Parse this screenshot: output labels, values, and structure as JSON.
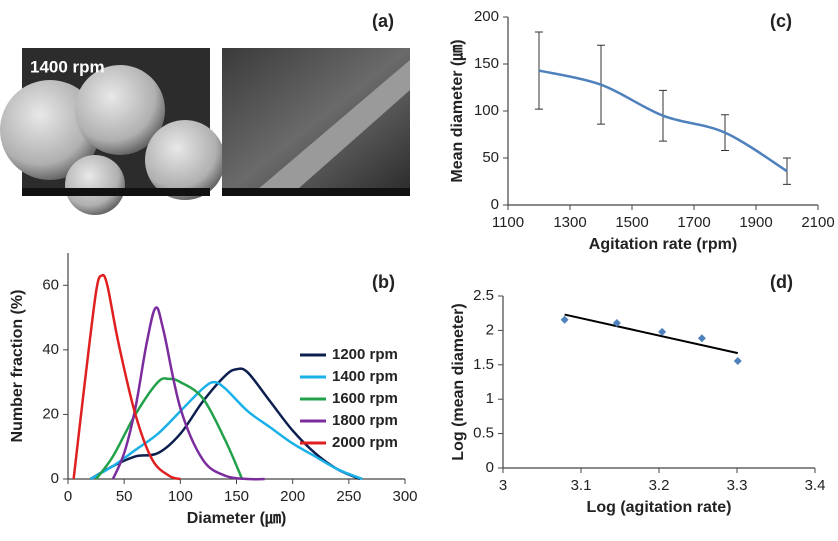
{
  "panel_a": {
    "label": "(a)",
    "caption": "1400 rpm"
  },
  "chart_data": [
    {
      "type": "line",
      "label": "(b)",
      "xlabel": "Diameter (㎛)",
      "ylabel": "Number fraction (%)",
      "xlim": [
        0,
        300
      ],
      "xticks": [
        0,
        50,
        100,
        150,
        200,
        250,
        300
      ],
      "ylim": [
        0,
        70
      ],
      "yticks": [
        0,
        20,
        40,
        60
      ],
      "legend": "right",
      "series": [
        {
          "name": "1200 rpm",
          "color": "#0d1f4f",
          "x": [
            20,
            40,
            60,
            80,
            100,
            120,
            140,
            150,
            160,
            180,
            200,
            220,
            240,
            260
          ],
          "values": [
            0,
            4,
            7,
            8,
            14,
            24,
            32,
            34,
            33,
            24,
            15,
            8,
            3,
            0
          ]
        },
        {
          "name": "1400 rpm",
          "color": "#1ab0e8",
          "x": [
            20,
            40,
            60,
            80,
            100,
            120,
            130,
            140,
            160,
            180,
            200,
            220,
            240,
            262
          ],
          "values": [
            0,
            4,
            9,
            14,
            21,
            28,
            30,
            28,
            21,
            16,
            11,
            7,
            3,
            0
          ]
        },
        {
          "name": "1600 rpm",
          "color": "#22a14b",
          "x": [
            25,
            40,
            60,
            80,
            90,
            100,
            120,
            140,
            155
          ],
          "values": [
            0,
            7,
            20,
            30,
            31,
            30,
            25,
            12,
            0
          ]
        },
        {
          "name": "1800 rpm",
          "color": "#7b2d9e",
          "x": [
            40,
            50,
            60,
            70,
            78,
            85,
            100,
            120,
            140,
            160,
            175
          ],
          "values": [
            0,
            8,
            22,
            42,
            53,
            46,
            22,
            6,
            1,
            0,
            0
          ]
        },
        {
          "name": "2000 rpm",
          "color": "#e02020",
          "x": [
            5,
            15,
            25,
            30,
            35,
            45,
            60,
            75,
            90,
            100
          ],
          "values": [
            0,
            30,
            58,
            63,
            60,
            42,
            20,
            6,
            1,
            0
          ]
        }
      ]
    },
    {
      "type": "line",
      "label": "(c)",
      "xlabel": "Agitation rate (rpm)",
      "ylabel": "Mean diameter (㎛)",
      "xlim": [
        1100,
        2100
      ],
      "xticks": [
        1100,
        1300,
        1500,
        1700,
        1900,
        2100
      ],
      "ylim": [
        0,
        200
      ],
      "yticks": [
        0,
        50,
        100,
        150,
        200
      ],
      "series": [
        {
          "color": "#4f81bd",
          "x": [
            1200,
            1400,
            1600,
            1800,
            2000
          ],
          "values": [
            143,
            128,
            95,
            77,
            36
          ],
          "errors": [
            41,
            42,
            27,
            19,
            14
          ]
        }
      ]
    },
    {
      "type": "scatter",
      "label": "(d)",
      "xlabel": "Log (agitation rate)",
      "ylabel": "Log (mean diameter)",
      "xlim": [
        3,
        3.4
      ],
      "xticks": [
        3,
        3.1,
        3.2,
        3.3,
        3.4
      ],
      "ylim": [
        0,
        2.5
      ],
      "yticks": [
        0,
        0.5,
        1,
        1.5,
        2,
        2.5
      ],
      "series": [
        {
          "color": "#4f81bd",
          "x": [
            3.079,
            3.146,
            3.204,
            3.255,
            3.301
          ],
          "values": [
            2.155,
            2.107,
            1.978,
            1.886,
            1.556
          ]
        }
      ],
      "trendline": {
        "color": "#000000",
        "x": [
          3.079,
          3.301
        ],
        "values": [
          2.23,
          1.67
        ]
      }
    }
  ]
}
